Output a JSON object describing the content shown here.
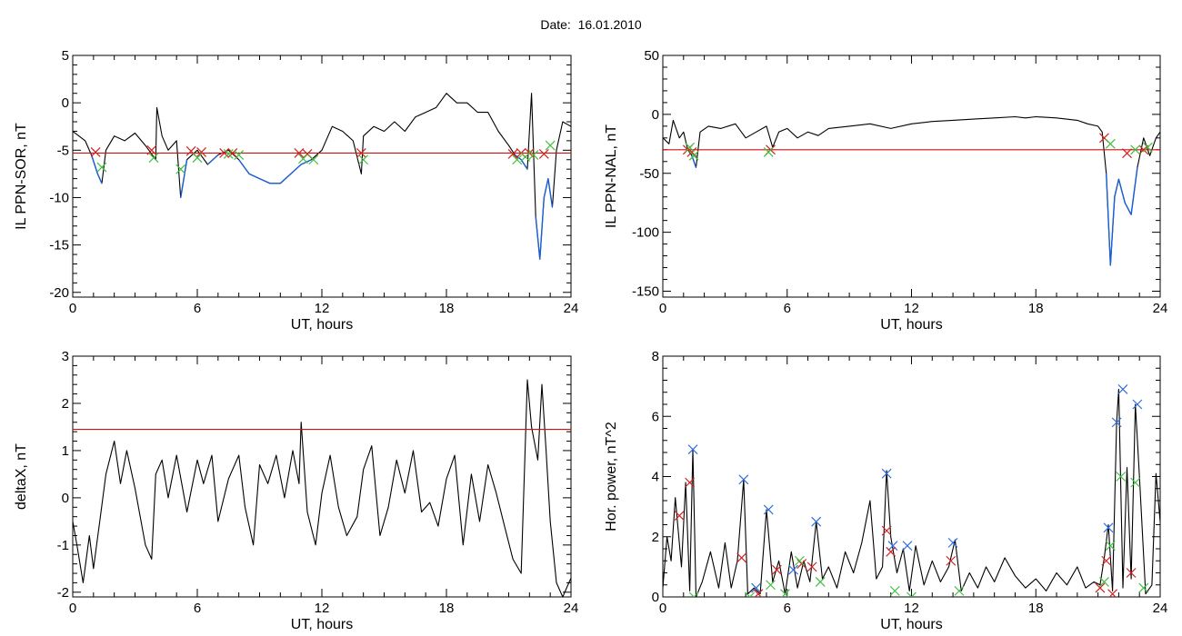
{
  "page_title": "Date:  16.01.2010",
  "colors": {
    "signal": "#000000",
    "threshold": "#cc1111",
    "highlight": "#1a5fd6",
    "marker_red": "#d42020",
    "marker_green": "#3fbf3f",
    "marker_blue": "#2f6fe0"
  },
  "chart_data": [
    {
      "id": "ppn-sor",
      "type": "line",
      "xlabel": "UT, hours",
      "ylabel": "IL PPN-SOR, nT",
      "xlim": [
        0,
        24
      ],
      "ylim": [
        -20.5,
        5
      ],
      "xticks": [
        0,
        6,
        12,
        18,
        24
      ],
      "yticks": [
        5,
        0,
        -5,
        -10,
        -15,
        -20
      ],
      "threshold": -5.3,
      "series": [
        {
          "role": "signal",
          "x": [
            0,
            0.3,
            0.6,
            0.9,
            1.2,
            1.4,
            1.6,
            2.0,
            2.5,
            3.0,
            3.5,
            4.0,
            4.05,
            4.3,
            4.6,
            5.0,
            5.2,
            5.5,
            6.0,
            6.5,
            7.0,
            7.5,
            8.0,
            8.5,
            9.0,
            9.5,
            10.0,
            10.5,
            11.0,
            11.5,
            12.0,
            12.5,
            13.0,
            13.5,
            13.9,
            14.0,
            14.5,
            15.0,
            15.5,
            16.0,
            16.5,
            17.0,
            17.5,
            18.0,
            18.5,
            19.0,
            19.5,
            20.0,
            20.5,
            21.0,
            21.3,
            21.6,
            21.9,
            22.1,
            22.3,
            22.5,
            22.7,
            22.9,
            23.1,
            23.3,
            23.6,
            24.0
          ],
          "y": [
            -3.0,
            -3.5,
            -4.0,
            -5.5,
            -7.5,
            -8.5,
            -5.0,
            -3.5,
            -4.0,
            -3.2,
            -4.5,
            -6.0,
            -0.5,
            -3.5,
            -5.0,
            -4.0,
            -10.0,
            -6.0,
            -5.0,
            -6.5,
            -5.5,
            -5.0,
            -6.0,
            -7.5,
            -8.0,
            -8.5,
            -8.5,
            -7.5,
            -6.5,
            -6.0,
            -5.0,
            -2.5,
            -3.0,
            -4.0,
            -7.5,
            -3.5,
            -2.5,
            -3.0,
            -2.0,
            -3.0,
            -1.5,
            -1.0,
            -0.5,
            1.0,
            0.0,
            0.0,
            -1.0,
            -1.0,
            -3.0,
            -4.5,
            -5.5,
            -6.0,
            -7.0,
            1.0,
            -12.0,
            -16.5,
            -10.0,
            -8.0,
            -11.0,
            -5.0,
            -2.0,
            -2.5
          ]
        }
      ],
      "markers_red": [
        [
          1.1,
          -5.2
        ],
        [
          3.8,
          -5.0
        ],
        [
          5.7,
          -5.1
        ],
        [
          6.2,
          -5.2
        ],
        [
          7.3,
          -5.3
        ],
        [
          7.7,
          -5.3
        ],
        [
          10.9,
          -5.3
        ],
        [
          11.3,
          -5.4
        ],
        [
          13.9,
          -5.3
        ],
        [
          21.2,
          -5.4
        ],
        [
          21.6,
          -5.3
        ],
        [
          22.0,
          -5.3
        ],
        [
          22.7,
          -5.4
        ]
      ],
      "markers_green": [
        [
          1.4,
          -6.8
        ],
        [
          3.9,
          -5.8
        ],
        [
          5.2,
          -7.0
        ],
        [
          6.0,
          -5.8
        ],
        [
          7.5,
          -5.4
        ],
        [
          8.0,
          -5.5
        ],
        [
          11.1,
          -5.9
        ],
        [
          11.6,
          -6.0
        ],
        [
          14.0,
          -6.0
        ],
        [
          21.4,
          -6.0
        ],
        [
          21.8,
          -5.7
        ],
        [
          22.2,
          -5.5
        ],
        [
          23.0,
          -4.5
        ]
      ]
    },
    {
      "id": "ppn-nal",
      "type": "line",
      "xlabel": "UT, hours",
      "ylabel": "IL PPN-NAL, nT",
      "xlim": [
        0,
        24
      ],
      "ylim": [
        -155,
        50
      ],
      "xticks": [
        0,
        6,
        12,
        18,
        24
      ],
      "yticks": [
        50,
        0,
        -50,
        -100,
        -150
      ],
      "threshold": -30,
      "series": [
        {
          "role": "signal",
          "x": [
            0,
            0.3,
            0.5,
            0.8,
            1.0,
            1.2,
            1.4,
            1.6,
            1.8,
            2.2,
            2.8,
            3.5,
            4.0,
            4.5,
            5.0,
            5.3,
            5.6,
            6.0,
            6.5,
            7.0,
            7.5,
            8.0,
            9.0,
            10.0,
            11.0,
            12.0,
            13.0,
            14.0,
            15.0,
            16.0,
            17.0,
            17.5,
            18.0,
            19.0,
            20.0,
            20.5,
            21.0,
            21.2,
            21.4,
            21.6,
            21.8,
            22.0,
            22.3,
            22.6,
            22.9,
            23.2,
            23.5,
            23.8,
            24.0
          ],
          "y": [
            -20,
            -25,
            -5,
            -20,
            -15,
            -30,
            -35,
            -45,
            -15,
            -10,
            -12,
            -8,
            -20,
            -15,
            -10,
            -28,
            -15,
            -12,
            -20,
            -15,
            -18,
            -12,
            -10,
            -8,
            -12,
            -8,
            -6,
            -5,
            -4,
            -3,
            -2,
            -3,
            -2,
            -3,
            -5,
            -8,
            -10,
            -15,
            -50,
            -128,
            -70,
            -55,
            -75,
            -85,
            -45,
            -20,
            -35,
            -20,
            -15
          ]
        }
      ],
      "markers_red": [
        [
          1.2,
          -30
        ],
        [
          1.4,
          -32
        ],
        [
          5.2,
          -30
        ],
        [
          21.3,
          -20
        ],
        [
          22.4,
          -33
        ],
        [
          23.2,
          -30
        ]
      ],
      "markers_green": [
        [
          1.3,
          -28
        ],
        [
          1.5,
          -35
        ],
        [
          5.1,
          -32
        ],
        [
          21.6,
          -25
        ],
        [
          22.8,
          -30
        ],
        [
          23.4,
          -28
        ]
      ]
    },
    {
      "id": "deltax",
      "type": "line",
      "xlabel": "UT, hours",
      "ylabel": "deltaX, nT",
      "xlim": [
        0,
        24
      ],
      "ylim": [
        -2.1,
        3
      ],
      "xticks": [
        0,
        6,
        12,
        18,
        24
      ],
      "yticks": [
        3,
        2,
        1,
        0,
        -1,
        -2
      ],
      "threshold": 1.45,
      "series": [
        {
          "role": "signal",
          "x": [
            0,
            0.2,
            0.5,
            0.8,
            1.0,
            1.3,
            1.6,
            2.0,
            2.3,
            2.6,
            3.0,
            3.5,
            3.8,
            4.0,
            4.3,
            4.6,
            5.0,
            5.5,
            6.0,
            6.3,
            6.7,
            7.0,
            7.5,
            8.0,
            8.3,
            8.7,
            9.0,
            9.4,
            9.8,
            10.2,
            10.6,
            10.9,
            11.0,
            11.3,
            11.7,
            12.0,
            12.4,
            12.8,
            13.2,
            13.7,
            14.0,
            14.4,
            14.8,
            15.2,
            15.6,
            16.0,
            16.4,
            16.8,
            17.2,
            17.6,
            18.0,
            18.4,
            18.8,
            19.2,
            19.6,
            20.0,
            20.4,
            20.8,
            21.2,
            21.6,
            21.9,
            22.1,
            22.4,
            22.6,
            22.8,
            23.0,
            23.3,
            23.6,
            23.8,
            24.0
          ],
          "y": [
            -0.5,
            -1.0,
            -1.8,
            -0.8,
            -1.5,
            -0.5,
            0.5,
            1.2,
            0.3,
            1.0,
            0.2,
            -1.0,
            -1.3,
            0.5,
            0.8,
            0.0,
            0.9,
            -0.3,
            0.8,
            0.3,
            0.9,
            -0.5,
            0.4,
            0.9,
            -0.2,
            -1.0,
            0.7,
            0.3,
            0.9,
            0.0,
            1.0,
            0.3,
            1.6,
            -0.3,
            -1.0,
            0.1,
            0.9,
            -0.2,
            -0.8,
            -0.4,
            0.6,
            1.1,
            -0.8,
            -0.2,
            0.8,
            0.1,
            1.0,
            -0.3,
            -0.1,
            -0.6,
            0.4,
            0.9,
            -1.0,
            0.5,
            -0.5,
            0.7,
            0.1,
            -0.6,
            -1.3,
            -1.6,
            2.5,
            1.5,
            0.8,
            2.4,
            1.0,
            -0.5,
            -1.8,
            -2.1,
            -1.9,
            -1.7
          ]
        }
      ]
    },
    {
      "id": "hor-power",
      "type": "line",
      "xlabel": "UT, hours",
      "ylabel": "Hor. power, nT^2",
      "xlim": [
        0,
        24
      ],
      "ylim": [
        0,
        8
      ],
      "xticks": [
        0,
        6,
        12,
        18,
        24
      ],
      "yticks": [
        8,
        6,
        4,
        2,
        0
      ],
      "series": [
        {
          "role": "signal",
          "x": [
            0,
            0.2,
            0.4,
            0.6,
            0.9,
            1.1,
            1.3,
            1.45,
            1.6,
            1.9,
            2.3,
            2.7,
            3.0,
            3.3,
            3.6,
            3.9,
            4.1,
            4.4,
            4.7,
            5.0,
            5.3,
            5.6,
            5.9,
            6.2,
            6.5,
            6.8,
            7.1,
            7.4,
            7.7,
            8.0,
            8.4,
            8.8,
            9.2,
            9.6,
            10.0,
            10.3,
            10.6,
            10.8,
            11.0,
            11.3,
            11.6,
            11.9,
            12.2,
            12.6,
            13.0,
            13.4,
            13.8,
            14.1,
            14.4,
            14.8,
            15.2,
            15.6,
            16.0,
            16.5,
            17.0,
            17.5,
            18.0,
            18.5,
            19.0,
            19.5,
            20.0,
            20.4,
            20.8,
            21.1,
            21.3,
            21.5,
            21.7,
            21.9,
            22.0,
            22.2,
            22.4,
            22.6,
            22.8,
            23.0,
            23.3,
            23.6,
            23.8,
            24.0
          ],
          "y": [
            0.3,
            2.0,
            1.2,
            3.3,
            1.0,
            3.8,
            0.2,
            4.9,
            0.0,
            0.5,
            1.5,
            0.3,
            1.8,
            0.3,
            1.2,
            3.9,
            0.1,
            0.3,
            0.1,
            2.9,
            0.5,
            1.2,
            0.1,
            1.5,
            0.3,
            1.2,
            0.5,
            2.5,
            0.6,
            1.0,
            0.3,
            1.5,
            0.8,
            1.8,
            3.2,
            0.6,
            1.0,
            4.2,
            2.0,
            0.8,
            1.6,
            0.2,
            1.7,
            0.4,
            1.2,
            0.5,
            1.0,
            1.9,
            0.2,
            0.8,
            0.3,
            1.0,
            0.5,
            1.3,
            0.7,
            0.3,
            0.6,
            0.2,
            0.8,
            0.4,
            1.0,
            0.3,
            0.5,
            0.4,
            1.3,
            2.4,
            0.2,
            5.8,
            6.9,
            0.3,
            4.3,
            0.6,
            6.4,
            4.0,
            0.1,
            0.4,
            4.1,
            2.5
          ]
        }
      ],
      "markers_blue": [
        [
          1.45,
          4.9
        ],
        [
          3.9,
          3.9
        ],
        [
          5.1,
          2.9
        ],
        [
          4.5,
          0.3
        ],
        [
          6.3,
          0.9
        ],
        [
          7.4,
          2.5
        ],
        [
          10.8,
          4.1
        ],
        [
          11.1,
          1.7
        ],
        [
          11.8,
          1.7
        ],
        [
          14.0,
          1.8
        ],
        [
          21.5,
          2.3
        ],
        [
          21.9,
          5.8
        ],
        [
          22.2,
          6.9
        ],
        [
          22.9,
          6.4
        ]
      ],
      "markers_red": [
        [
          0.8,
          2.7
        ],
        [
          1.3,
          3.8
        ],
        [
          3.8,
          1.3
        ],
        [
          4.6,
          0.1
        ],
        [
          5.5,
          0.9
        ],
        [
          6.7,
          1.1
        ],
        [
          7.2,
          1.0
        ],
        [
          10.8,
          2.2
        ],
        [
          11.0,
          1.5
        ],
        [
          13.9,
          1.2
        ],
        [
          21.1,
          0.3
        ],
        [
          21.4,
          1.2
        ],
        [
          21.7,
          0.1
        ],
        [
          22.6,
          0.8
        ]
      ],
      "markers_green": [
        [
          1.5,
          0.0
        ],
        [
          4.2,
          0.0
        ],
        [
          5.2,
          0.4
        ],
        [
          5.9,
          0.1
        ],
        [
          6.6,
          1.2
        ],
        [
          7.6,
          0.5
        ],
        [
          11.2,
          0.2
        ],
        [
          12.0,
          0.0
        ],
        [
          14.3,
          0.2
        ],
        [
          21.3,
          0.5
        ],
        [
          21.6,
          1.7
        ],
        [
          22.1,
          4.0
        ],
        [
          22.8,
          3.8
        ],
        [
          23.2,
          0.3
        ]
      ]
    }
  ]
}
